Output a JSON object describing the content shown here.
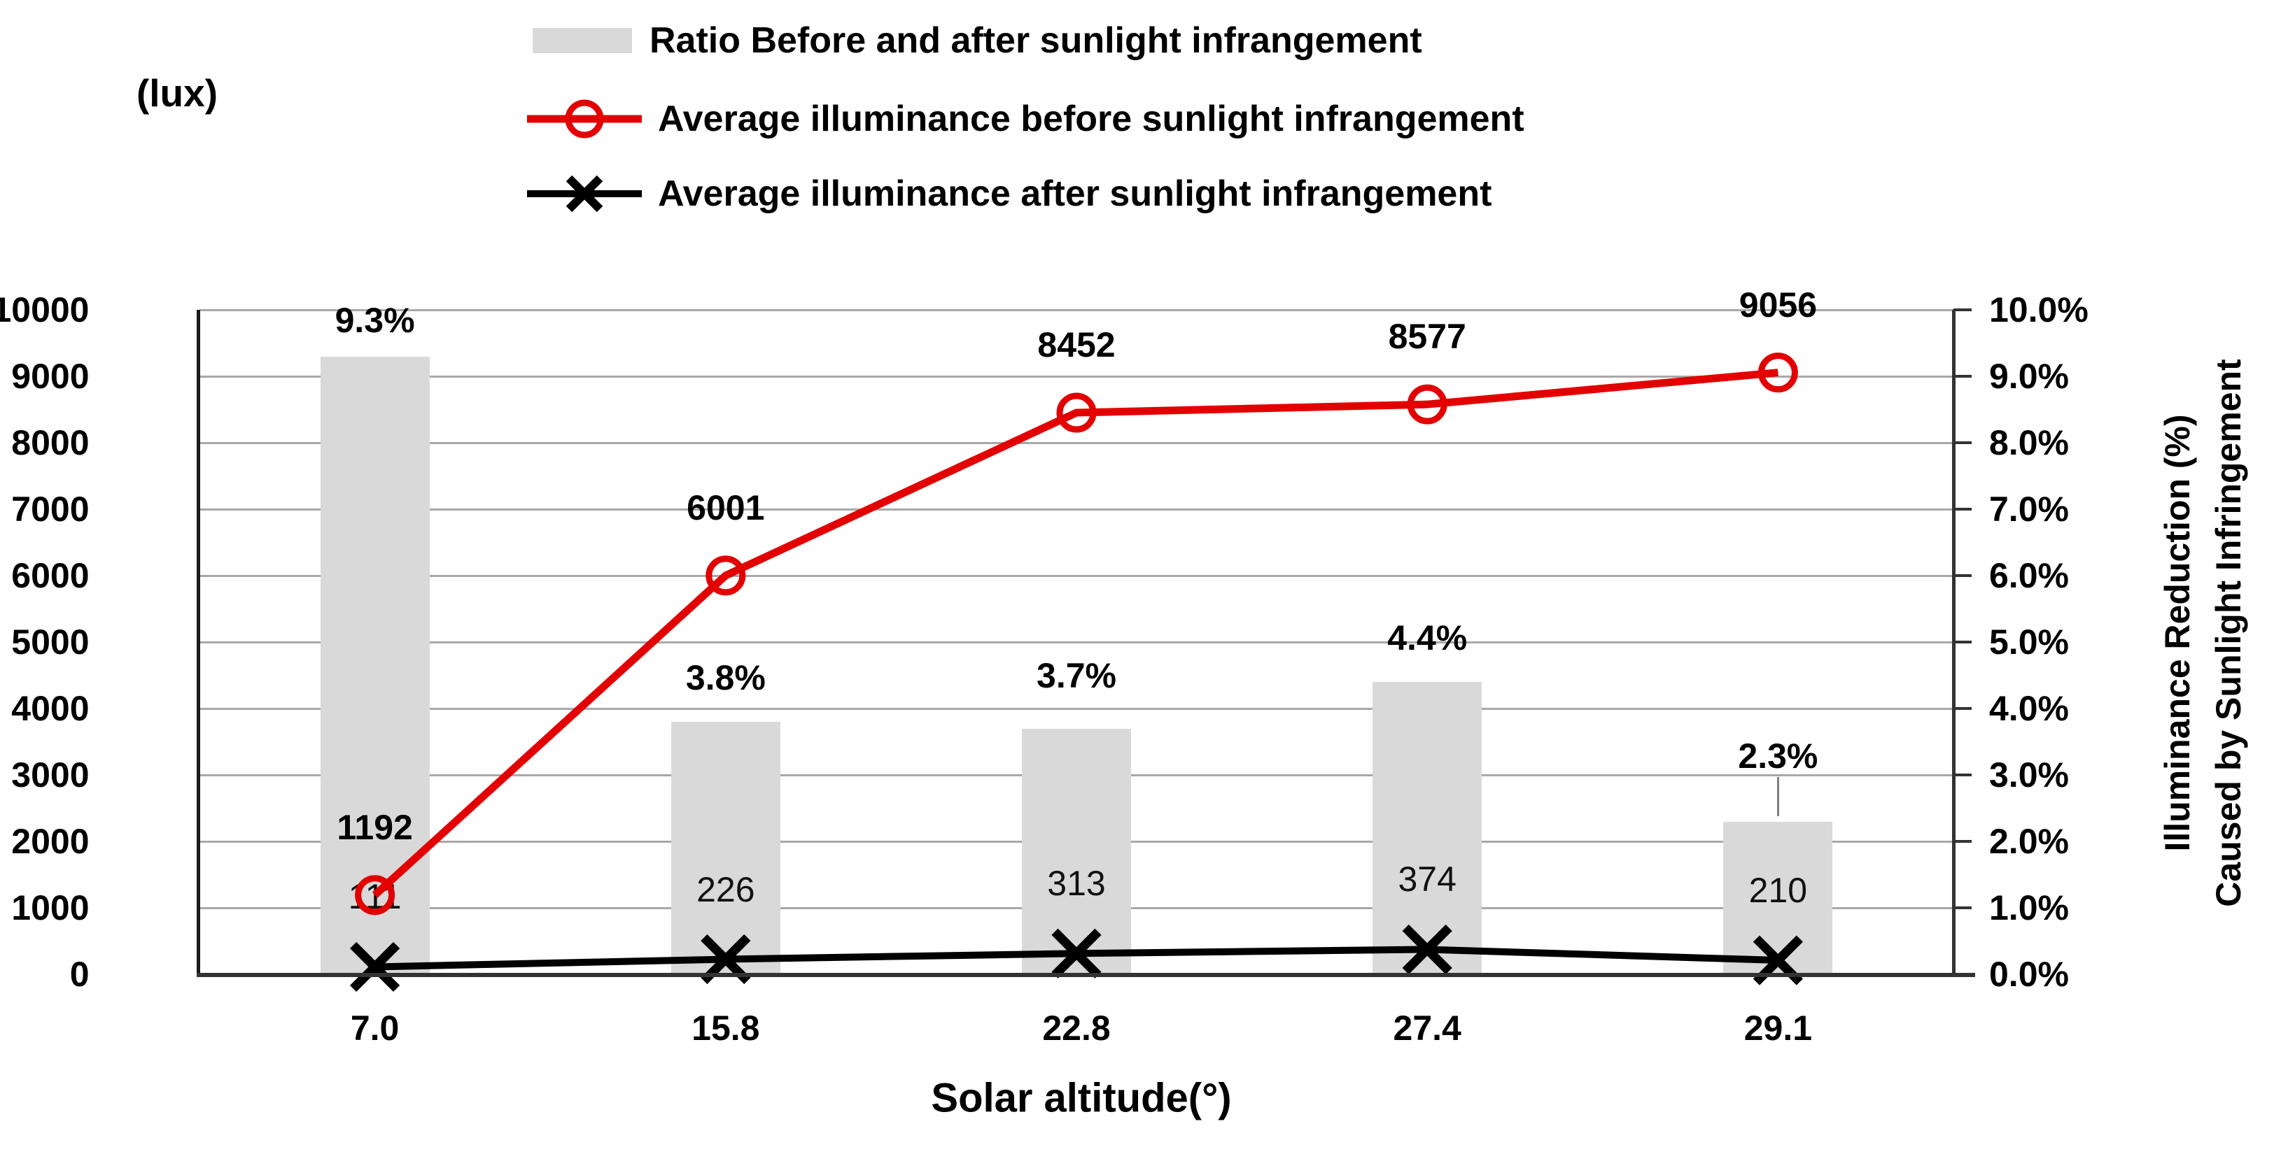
{
  "chart_data": {
    "type": "combo-bar-line",
    "categories": [
      "7.0",
      "15.8",
      "22.8",
      "27.4",
      "29.1"
    ],
    "x_axis_title": "Solar altitude(°)",
    "left_axis_title": "(lux)",
    "right_axis_title_line1": "Illuminance Reduction (%)",
    "right_axis_title_line2": "Caused by Sunlight Infringement",
    "left_axis": {
      "min": 0,
      "max": 10000,
      "step": 1000,
      "tick_labels": [
        "10000",
        "9000",
        "8000",
        "7000",
        "6000",
        "5000",
        "4000",
        "3000",
        "2000",
        "1000",
        "0"
      ]
    },
    "right_axis": {
      "min": 0,
      "max": 10,
      "step": 1,
      "tick_labels": [
        "10.0%",
        "9.0%",
        "8.0%",
        "7.0%",
        "6.0%",
        "5.0%",
        "4.0%",
        "3.0%",
        "2.0%",
        "1.0%",
        "0.0%"
      ]
    },
    "grid": "horizontal",
    "legend_position": "top",
    "series": [
      {
        "name": "Ratio Before and after sunlight infrangement",
        "type": "bar",
        "axis": "right",
        "color": "#d9d9d9",
        "values": [
          9.3,
          3.8,
          3.7,
          4.4,
          2.3
        ],
        "labels": [
          "9.3%",
          "3.8%",
          "3.7%",
          "4.4%",
          "2.3%"
        ]
      },
      {
        "name": "Average illuminance before sunlight infrangement",
        "type": "line",
        "axis": "left",
        "color": "#e30000",
        "marker": "open-circle",
        "values": [
          1192,
          6001,
          8452,
          8577,
          9056
        ],
        "labels": [
          "1192",
          "6001",
          "8452",
          "8577",
          "9056"
        ]
      },
      {
        "name": "Average illuminance after sunlight infrangement",
        "type": "line",
        "axis": "left",
        "color": "#000000",
        "marker": "x",
        "values": [
          111,
          226,
          313,
          374,
          210
        ],
        "labels": [
          "111",
          "226",
          "313",
          "374",
          "210"
        ]
      }
    ]
  }
}
